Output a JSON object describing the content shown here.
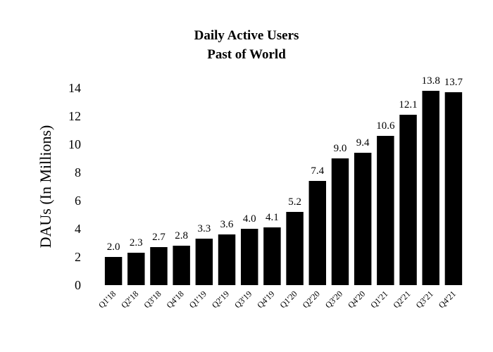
{
  "chart_data": {
    "type": "bar",
    "title": "Daily Active Users",
    "subtitle": "Past of World",
    "ylabel": "DAUs (In Millions)",
    "xlabel": "",
    "ylim": [
      0,
      14
    ],
    "yticks": [
      0,
      2,
      4,
      6,
      8,
      10,
      12,
      14
    ],
    "grid": false,
    "bar_color": "#000000",
    "categories": [
      "Q1'18",
      "Q2'18",
      "Q3'18",
      "Q4'18",
      "Q1'19",
      "Q2'19",
      "Q3'19",
      "Q4'19",
      "Q1'20",
      "Q2'20",
      "Q3'20",
      "Q4'20",
      "Q1'21",
      "Q2'21",
      "Q3'21",
      "Q4'21"
    ],
    "values": [
      2.0,
      2.3,
      2.7,
      2.8,
      3.3,
      3.6,
      4.0,
      4.1,
      5.2,
      7.4,
      9.0,
      9.4,
      10.6,
      12.1,
      13.8,
      13.7
    ],
    "data_labels": [
      "2.0",
      "2.3",
      "2.7",
      "2.8",
      "3.3",
      "3.6",
      "4.0",
      "4.1",
      "5.2",
      "7.4",
      "9.0",
      "9.4",
      "10.6",
      "12.1",
      "13.8",
      "13.7"
    ]
  }
}
